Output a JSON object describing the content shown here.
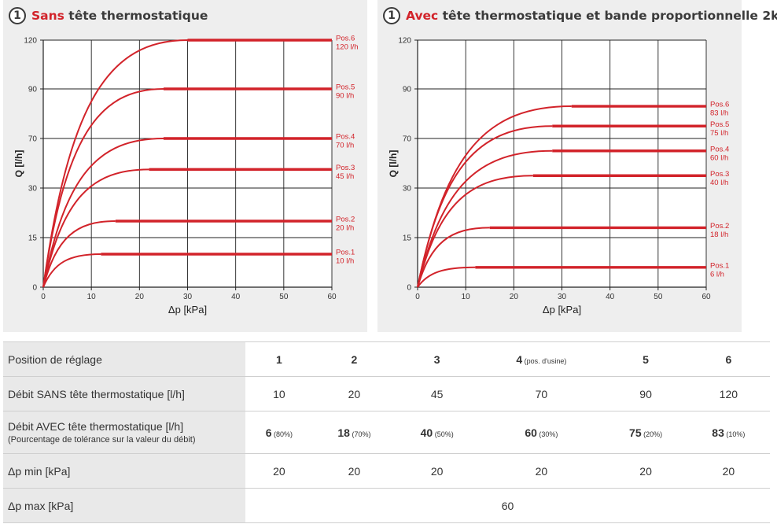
{
  "colors": {
    "accent": "#d2232a",
    "grid": "#222222",
    "panel_bg": "#eeeeee"
  },
  "panels": [
    {
      "badge": "1",
      "title_accent": "Sans",
      "title_rest": " tête thermostatique"
    },
    {
      "badge": "1",
      "title_accent": "Avec",
      "title_rest": " tête thermostatique et bande proportionnelle 2k"
    }
  ],
  "chart_data": [
    {
      "type": "line",
      "xlabel": "Δp [kPa]",
      "ylabel": "Q [l/h]",
      "x_ticks": [
        0,
        10,
        20,
        30,
        40,
        50,
        60
      ],
      "y_ticks": [
        "0",
        "15",
        "30",
        "70",
        "90",
        "120"
      ],
      "xlim": [
        0,
        60
      ],
      "grid": true,
      "series": [
        {
          "name": "Pos.1",
          "label": "10 l/h",
          "value": 10,
          "flat_from": 12
        },
        {
          "name": "Pos.2",
          "label": "20 l/h",
          "value": 20,
          "flat_from": 15
        },
        {
          "name": "Pos.3",
          "label": "45 l/h",
          "value": 45,
          "flat_from": 22
        },
        {
          "name": "Pos.4",
          "label": "70 l/h",
          "value": 70,
          "flat_from": 25
        },
        {
          "name": "Pos.5",
          "label": "90 l/h",
          "value": 90,
          "flat_from": 25
        },
        {
          "name": "Pos.6",
          "label": "120 l/h",
          "value": 120,
          "flat_from": 30
        }
      ]
    },
    {
      "type": "line",
      "xlabel": "Δp [kPa]",
      "ylabel": "Q [l/h]",
      "x_ticks": [
        0,
        10,
        20,
        30,
        40,
        50,
        60
      ],
      "y_ticks": [
        "0",
        "15",
        "30",
        "70",
        "90",
        "120"
      ],
      "xlim": [
        0,
        60
      ],
      "grid": true,
      "series": [
        {
          "name": "Pos.1",
          "label": "6 l/h",
          "value": 6,
          "flat_from": 12
        },
        {
          "name": "Pos.2",
          "label": "18 l/h",
          "value": 18,
          "flat_from": 15
        },
        {
          "name": "Pos.3",
          "label": "40 l/h",
          "value": 40,
          "flat_from": 24
        },
        {
          "name": "Pos.4",
          "label": "60 l/h",
          "value": 60,
          "flat_from": 28
        },
        {
          "name": "Pos.5",
          "label": "75 l/h",
          "value": 75,
          "flat_from": 28
        },
        {
          "name": "Pos.6",
          "label": "83 l/h",
          "value": 83,
          "flat_from": 32
        }
      ]
    }
  ],
  "table": {
    "rows": [
      {
        "label": "Position de réglage",
        "cells": [
          {
            "main": "1",
            "sub": ""
          },
          {
            "main": "2",
            "sub": ""
          },
          {
            "main": "3",
            "sub": ""
          },
          {
            "main": "4",
            "sub": " (pos. d'usine)"
          },
          {
            "main": "5",
            "sub": ""
          },
          {
            "main": "6",
            "sub": ""
          }
        ]
      },
      {
        "label": "Débit SANS tête thermostatique [l/h]",
        "cells": [
          {
            "main": "10",
            "sub": ""
          },
          {
            "main": "20",
            "sub": ""
          },
          {
            "main": "45",
            "sub": ""
          },
          {
            "main": "70",
            "sub": ""
          },
          {
            "main": "90",
            "sub": ""
          },
          {
            "main": "120",
            "sub": ""
          }
        ]
      },
      {
        "label": "Débit AVEC tête thermostatique  [l/h]",
        "note": "(Pourcentage de tolérance sur la valeur du débit)",
        "cells": [
          {
            "main": "6",
            "sub": " (80%)"
          },
          {
            "main": "18",
            "sub": " (70%)"
          },
          {
            "main": "40",
            "sub": " (50%)"
          },
          {
            "main": "60",
            "sub": " (30%)"
          },
          {
            "main": "75",
            "sub": " (20%)"
          },
          {
            "main": "83",
            "sub": " (10%)"
          }
        ]
      },
      {
        "label": "Δp min [kPa]",
        "cells": [
          {
            "main": "20",
            "sub": ""
          },
          {
            "main": "20",
            "sub": ""
          },
          {
            "main": "20",
            "sub": ""
          },
          {
            "main": "20",
            "sub": ""
          },
          {
            "main": "20",
            "sub": ""
          },
          {
            "main": "20",
            "sub": ""
          }
        ]
      },
      {
        "label": "Δp max [kPa]",
        "merged": "60"
      }
    ]
  }
}
